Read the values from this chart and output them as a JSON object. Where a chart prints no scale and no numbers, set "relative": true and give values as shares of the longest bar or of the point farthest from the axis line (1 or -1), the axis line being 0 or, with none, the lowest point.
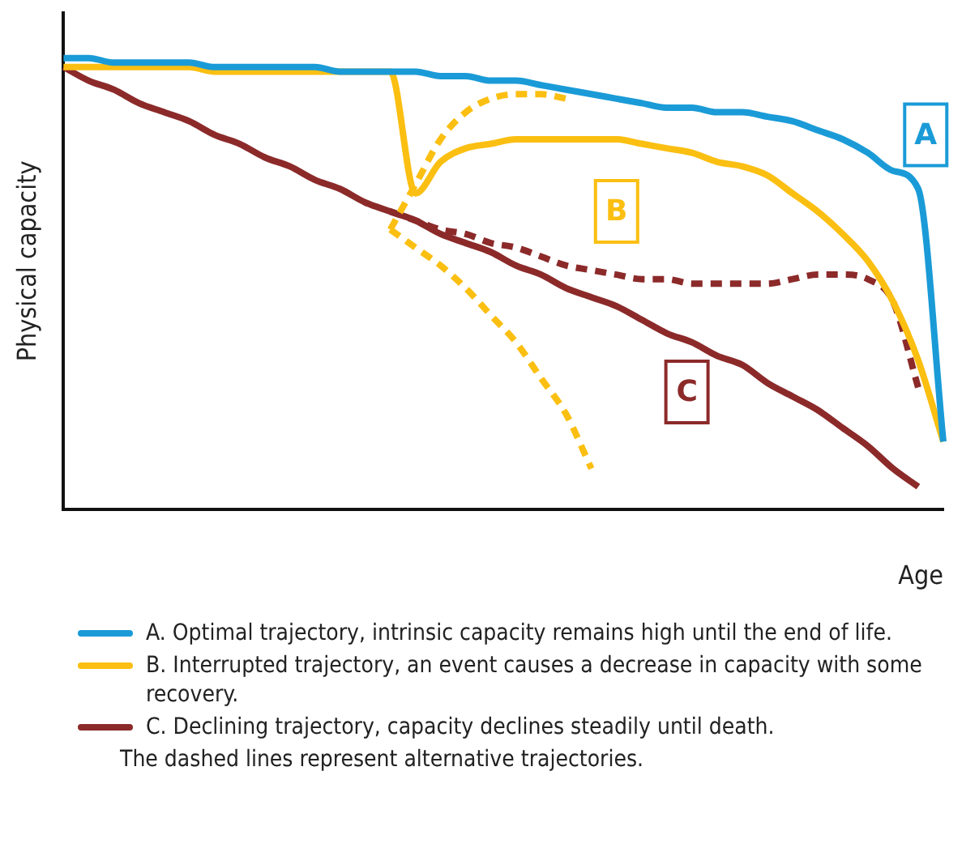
{
  "chart_data": {
    "type": "line",
    "relative": true,
    "xlabel": "Age",
    "ylabel": "Physical capacity",
    "grid": false,
    "legend": "bottom",
    "marker": "none",
    "line_style": "solid",
    "categories": [
      null,
      null,
      null,
      null,
      null,
      null,
      null,
      null,
      null,
      null,
      null,
      null,
      null,
      null,
      null,
      null,
      null,
      null,
      null,
      null,
      null,
      null,
      null,
      null,
      null,
      null,
      null,
      null,
      null,
      null,
      null,
      null,
      null,
      null,
      null,
      null
    ],
    "series": [
      {
        "name": "A.  Optimal trajectory, intrinsic capacity remains high until the end of life.",
        "color": "#1a9bd7",
        "values": [
          1,
          1,
          0.99,
          0.99,
          0.99,
          0.99,
          0.98,
          0.98,
          0.98,
          0.98,
          0.98,
          0.97,
          0.97,
          0.97,
          0.97,
          0.96,
          0.96,
          0.95,
          0.95,
          0.94,
          0.93,
          0.92,
          0.91,
          0.9,
          0.89,
          0.89,
          0.88,
          0.88,
          0.87,
          0.86,
          0.84,
          0.82,
          0.79,
          0.75,
          0.71,
          0.15
        ]
      },
      {
        "name": "B.  Interrupted trajectory, an event causes a decrease in capacity with some recovery.",
        "color": "#fbbf12",
        "values": [
          0.98,
          0.98,
          0.98,
          0.98,
          0.98,
          0.98,
          0.97,
          0.97,
          0.97,
          0.97,
          0.97,
          0.97,
          0.97,
          0.97,
          0.7,
          0.77,
          0.8,
          0.81,
          0.82,
          0.82,
          0.82,
          0.82,
          0.82,
          0.81,
          0.8,
          0.79,
          0.77,
          0.76,
          0.74,
          0.7,
          0.66,
          0.61,
          0.55,
          0.46,
          0.33,
          0.15
        ]
      },
      {
        "color": "#fbbf12",
        "line_style": "dashed",
        "values": [
          null,
          null,
          null,
          null,
          null,
          null,
          null,
          null,
          null,
          null,
          null,
          null,
          null,
          0.62,
          0.72,
          0.82,
          0.88,
          0.91,
          0.92,
          0.92,
          0.91,
          null,
          null,
          null,
          null,
          null,
          null,
          null,
          null,
          null,
          null,
          null,
          null,
          null,
          null,
          null
        ]
      },
      {
        "color": "#fbbf12",
        "line_style": "dashed",
        "values": [
          null,
          null,
          null,
          null,
          null,
          null,
          null,
          null,
          null,
          null,
          null,
          null,
          null,
          0.62,
          0.58,
          0.54,
          0.49,
          0.43,
          0.37,
          0.29,
          0.21,
          0.09,
          null,
          null,
          null,
          null,
          null,
          null,
          null,
          null,
          null,
          null,
          null,
          null,
          null,
          null
        ]
      },
      {
        "name": "C.  Declining trajectory, capacity declines steadily until death.",
        "color": "#8c2a2a",
        "values": [
          0.98,
          0.95,
          0.93,
          0.9,
          0.88,
          0.86,
          0.83,
          0.81,
          0.78,
          0.76,
          0.73,
          0.71,
          0.68,
          0.66,
          0.64,
          0.61,
          0.59,
          0.57,
          0.54,
          0.52,
          0.49,
          0.47,
          0.45,
          0.42,
          0.39,
          0.37,
          0.34,
          0.32,
          0.28,
          0.25,
          0.22,
          0.18,
          0.14,
          0.09,
          0.05,
          null
        ]
      },
      {
        "color": "#8c2a2a",
        "line_style": "dashed",
        "values": [
          null,
          null,
          null,
          null,
          null,
          null,
          null,
          null,
          null,
          null,
          null,
          null,
          null,
          0.66,
          0.64,
          0.62,
          0.61,
          0.59,
          0.58,
          0.56,
          0.54,
          0.53,
          0.52,
          0.51,
          0.51,
          0.5,
          0.5,
          0.5,
          0.5,
          0.51,
          0.52,
          0.52,
          0.51,
          0.46,
          0.27,
          null
        ]
      }
    ],
    "annotations": [
      {
        "text": "A",
        "y": 0.83
      },
      {
        "text": "B",
        "y": 0.66
      },
      {
        "text": "C",
        "y": 0.26
      },
      "The dashed lines represent alternative trajectories."
    ]
  }
}
